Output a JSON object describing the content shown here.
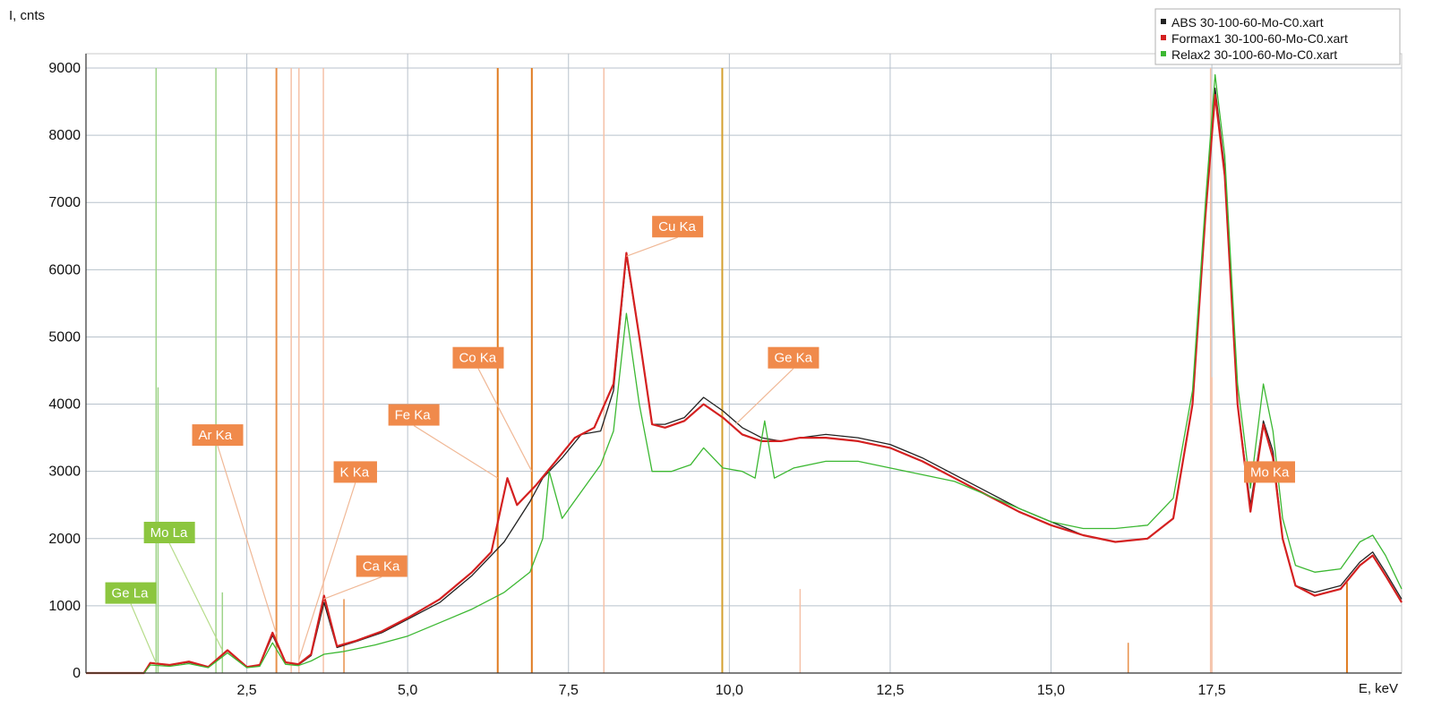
{
  "chart_data": {
    "type": "line",
    "title": "",
    "xlabel": "E, keV",
    "ylabel": "I, cnts",
    "xlim": [
      0,
      20.45
    ],
    "ylim": [
      0,
      9000
    ],
    "x_ticks": [
      {
        "value": 2.5,
        "label": "2,5"
      },
      {
        "value": 5.0,
        "label": "5,0"
      },
      {
        "value": 7.5,
        "label": "7,5"
      },
      {
        "value": 10.0,
        "label": "10,0"
      },
      {
        "value": 12.5,
        "label": "12,5"
      },
      {
        "value": 15.0,
        "label": "15,0"
      },
      {
        "value": 17.5,
        "label": "17,5"
      }
    ],
    "y_ticks": [
      {
        "value": 0,
        "label": "0"
      },
      {
        "value": 1000,
        "label": "1000"
      },
      {
        "value": 2000,
        "label": "2000"
      },
      {
        "value": 3000,
        "label": "3000"
      },
      {
        "value": 4000,
        "label": "4000"
      },
      {
        "value": 5000,
        "label": "5000"
      },
      {
        "value": 6000,
        "label": "6000"
      },
      {
        "value": 7000,
        "label": "7000"
      },
      {
        "value": 8000,
        "label": "8000"
      },
      {
        "value": 9000,
        "label": "9000"
      }
    ],
    "grid": true,
    "legend_position": "top-right",
    "series": [
      {
        "name": "ABS 30-100-60-Mo-C0.xart",
        "color": "#222222",
        "points": [
          [
            0,
            0
          ],
          [
            0.5,
            0
          ],
          [
            0.9,
            0
          ],
          [
            1.0,
            150
          ],
          [
            1.3,
            120
          ],
          [
            1.6,
            160
          ],
          [
            1.9,
            90
          ],
          [
            2.2,
            330
          ],
          [
            2.5,
            90
          ],
          [
            2.7,
            120
          ],
          [
            2.9,
            560
          ],
          [
            3.1,
            160
          ],
          [
            3.3,
            120
          ],
          [
            3.5,
            260
          ],
          [
            3.7,
            1050
          ],
          [
            3.9,
            380
          ],
          [
            4.2,
            470
          ],
          [
            4.6,
            600
          ],
          [
            5.0,
            800
          ],
          [
            5.5,
            1050
          ],
          [
            6.0,
            1450
          ],
          [
            6.5,
            1950
          ],
          [
            6.9,
            2550
          ],
          [
            7.1,
            2900
          ],
          [
            7.4,
            3200
          ],
          [
            7.7,
            3550
          ],
          [
            8.0,
            3600
          ],
          [
            8.2,
            4200
          ],
          [
            8.4,
            6200
          ],
          [
            8.6,
            5000
          ],
          [
            8.8,
            3700
          ],
          [
            9.0,
            3700
          ],
          [
            9.3,
            3800
          ],
          [
            9.6,
            4100
          ],
          [
            9.9,
            3900
          ],
          [
            10.2,
            3650
          ],
          [
            10.5,
            3500
          ],
          [
            10.8,
            3450
          ],
          [
            11.1,
            3500
          ],
          [
            11.5,
            3550
          ],
          [
            12.0,
            3500
          ],
          [
            12.5,
            3400
          ],
          [
            13.0,
            3200
          ],
          [
            13.5,
            2950
          ],
          [
            14.0,
            2700
          ],
          [
            14.5,
            2450
          ],
          [
            15.0,
            2250
          ],
          [
            15.5,
            2050
          ],
          [
            16.0,
            1950
          ],
          [
            16.5,
            2000
          ],
          [
            16.9,
            2300
          ],
          [
            17.2,
            4000
          ],
          [
            17.4,
            6800
          ],
          [
            17.55,
            8700
          ],
          [
            17.7,
            7500
          ],
          [
            17.9,
            4000
          ],
          [
            18.1,
            2500
          ],
          [
            18.3,
            3750
          ],
          [
            18.45,
            3300
          ],
          [
            18.6,
            2000
          ],
          [
            18.8,
            1300
          ],
          [
            19.1,
            1200
          ],
          [
            19.5,
            1300
          ],
          [
            19.8,
            1650
          ],
          [
            20.0,
            1800
          ],
          [
            20.2,
            1500
          ],
          [
            20.45,
            1100
          ]
        ]
      },
      {
        "name": "Formax1 30-100-60-Mo-C0.xart",
        "color": "#d42020",
        "points": [
          [
            0,
            0
          ],
          [
            0.5,
            0
          ],
          [
            0.9,
            0
          ],
          [
            1.0,
            150
          ],
          [
            1.3,
            120
          ],
          [
            1.6,
            170
          ],
          [
            1.9,
            90
          ],
          [
            2.2,
            340
          ],
          [
            2.5,
            90
          ],
          [
            2.7,
            120
          ],
          [
            2.9,
            600
          ],
          [
            3.1,
            160
          ],
          [
            3.3,
            130
          ],
          [
            3.5,
            280
          ],
          [
            3.7,
            1150
          ],
          [
            3.9,
            400
          ],
          [
            4.2,
            480
          ],
          [
            4.6,
            620
          ],
          [
            5.0,
            820
          ],
          [
            5.5,
            1100
          ],
          [
            6.0,
            1500
          ],
          [
            6.3,
            1800
          ],
          [
            6.55,
            2900
          ],
          [
            6.7,
            2500
          ],
          [
            7.0,
            2800
          ],
          [
            7.3,
            3150
          ],
          [
            7.6,
            3500
          ],
          [
            7.9,
            3650
          ],
          [
            8.2,
            4300
          ],
          [
            8.4,
            6250
          ],
          [
            8.6,
            5000
          ],
          [
            8.8,
            3700
          ],
          [
            9.0,
            3650
          ],
          [
            9.3,
            3750
          ],
          [
            9.6,
            4000
          ],
          [
            9.9,
            3800
          ],
          [
            10.2,
            3550
          ],
          [
            10.5,
            3450
          ],
          [
            10.8,
            3450
          ],
          [
            11.1,
            3500
          ],
          [
            11.5,
            3500
          ],
          [
            12.0,
            3450
          ],
          [
            12.5,
            3350
          ],
          [
            13.0,
            3150
          ],
          [
            13.5,
            2900
          ],
          [
            14.0,
            2650
          ],
          [
            14.5,
            2400
          ],
          [
            15.0,
            2200
          ],
          [
            15.5,
            2050
          ],
          [
            16.0,
            1950
          ],
          [
            16.5,
            2000
          ],
          [
            16.9,
            2300
          ],
          [
            17.2,
            4000
          ],
          [
            17.4,
            6800
          ],
          [
            17.55,
            8600
          ],
          [
            17.7,
            7400
          ],
          [
            17.9,
            4000
          ],
          [
            18.1,
            2400
          ],
          [
            18.3,
            3700
          ],
          [
            18.45,
            3200
          ],
          [
            18.6,
            2000
          ],
          [
            18.8,
            1300
          ],
          [
            19.1,
            1150
          ],
          [
            19.5,
            1250
          ],
          [
            19.8,
            1600
          ],
          [
            20.0,
            1750
          ],
          [
            20.2,
            1450
          ],
          [
            20.45,
            1050
          ]
        ]
      },
      {
        "name": "Relax2 30-100-60-Mo-C0.xart",
        "color": "#3cb832",
        "points": [
          [
            0,
            0
          ],
          [
            0.5,
            0
          ],
          [
            0.9,
            0
          ],
          [
            1.0,
            120
          ],
          [
            1.3,
            100
          ],
          [
            1.6,
            140
          ],
          [
            1.9,
            80
          ],
          [
            2.2,
            300
          ],
          [
            2.5,
            80
          ],
          [
            2.7,
            100
          ],
          [
            2.9,
            450
          ],
          [
            3.1,
            130
          ],
          [
            3.3,
            110
          ],
          [
            3.5,
            180
          ],
          [
            3.7,
            280
          ],
          [
            4.0,
            320
          ],
          [
            4.5,
            420
          ],
          [
            5.0,
            550
          ],
          [
            5.5,
            750
          ],
          [
            6.0,
            950
          ],
          [
            6.5,
            1200
          ],
          [
            6.9,
            1500
          ],
          [
            7.1,
            2000
          ],
          [
            7.2,
            3000
          ],
          [
            7.4,
            2300
          ],
          [
            7.7,
            2700
          ],
          [
            8.0,
            3100
          ],
          [
            8.2,
            3600
          ],
          [
            8.4,
            5350
          ],
          [
            8.6,
            4000
          ],
          [
            8.8,
            3000
          ],
          [
            9.1,
            3000
          ],
          [
            9.4,
            3100
          ],
          [
            9.6,
            3350
          ],
          [
            9.9,
            3050
          ],
          [
            10.2,
            3000
          ],
          [
            10.4,
            2900
          ],
          [
            10.55,
            3750
          ],
          [
            10.7,
            2900
          ],
          [
            11.0,
            3050
          ],
          [
            11.5,
            3150
          ],
          [
            12.0,
            3150
          ],
          [
            12.5,
            3050
          ],
          [
            13.0,
            2950
          ],
          [
            13.5,
            2850
          ],
          [
            14.0,
            2650
          ],
          [
            14.5,
            2450
          ],
          [
            15.0,
            2250
          ],
          [
            15.5,
            2150
          ],
          [
            16.0,
            2150
          ],
          [
            16.5,
            2200
          ],
          [
            16.9,
            2600
          ],
          [
            17.2,
            4200
          ],
          [
            17.4,
            7000
          ],
          [
            17.55,
            8900
          ],
          [
            17.7,
            7700
          ],
          [
            17.9,
            4300
          ],
          [
            18.1,
            2750
          ],
          [
            18.3,
            4300
          ],
          [
            18.45,
            3600
          ],
          [
            18.6,
            2300
          ],
          [
            18.8,
            1600
          ],
          [
            19.1,
            1500
          ],
          [
            19.5,
            1550
          ],
          [
            19.8,
            1950
          ],
          [
            20.0,
            2050
          ],
          [
            20.2,
            1750
          ],
          [
            20.45,
            1250
          ]
        ]
      }
    ],
    "element_lines": [
      {
        "x": 1.09,
        "height": 9000,
        "color": "#9fd48a",
        "width": 1.5
      },
      {
        "x": 1.12,
        "height": 4250,
        "color": "#9fd48a",
        "width": 1.5
      },
      {
        "x": 2.02,
        "height": 9000,
        "color": "#9fd48a",
        "width": 1.5
      },
      {
        "x": 2.12,
        "height": 1200,
        "color": "#9fd48a",
        "width": 1.5
      },
      {
        "x": 2.96,
        "height": 9000,
        "color": "#e8904a",
        "width": 2
      },
      {
        "x": 3.19,
        "height": 9000,
        "color": "#f5c2a8",
        "width": 1.5
      },
      {
        "x": 3.31,
        "height": 9000,
        "color": "#f5c2a8",
        "width": 1.5
      },
      {
        "x": 3.69,
        "height": 9000,
        "color": "#f5c2a8",
        "width": 1.5
      },
      {
        "x": 4.01,
        "height": 1100,
        "color": "#e8904a",
        "width": 1.5
      },
      {
        "x": 6.4,
        "height": 9000,
        "color": "#e07b20",
        "width": 2
      },
      {
        "x": 6.93,
        "height": 9000,
        "color": "#e07b20",
        "width": 2
      },
      {
        "x": 8.05,
        "height": 9000,
        "color": "#f5c2a8",
        "width": 1.5
      },
      {
        "x": 9.89,
        "height": 9000,
        "color": "#d4a030",
        "width": 2
      },
      {
        "x": 11.1,
        "height": 1250,
        "color": "#f5c2a8",
        "width": 1.5
      },
      {
        "x": 16.2,
        "height": 450,
        "color": "#e8904a",
        "width": 1.5
      },
      {
        "x": 17.48,
        "height": 9000,
        "color": "#f5c2a8",
        "width": 1.5
      },
      {
        "x": 17.5,
        "height": 4400,
        "color": "#f5c2a8",
        "width": 1.5
      },
      {
        "x": 19.6,
        "height": 1350,
        "color": "#e07b20",
        "width": 2
      }
    ],
    "element_labels": [
      {
        "text": "Cu Ka",
        "style": "orange",
        "box": [
          8.8,
          6800
        ],
        "anchor": [
          8.4,
          6200
        ]
      },
      {
        "text": "Co Ka",
        "style": "orange",
        "box": [
          5.7,
          4850
        ],
        "anchor": [
          6.93,
          3000
        ]
      },
      {
        "text": "Ge Ka",
        "style": "orange",
        "box": [
          10.6,
          4850
        ],
        "anchor": [
          10.1,
          3700
        ]
      },
      {
        "text": "Fe Ka",
        "style": "orange",
        "box": [
          4.7,
          4000
        ],
        "anchor": [
          6.4,
          2900
        ]
      },
      {
        "text": "Ar Ka",
        "style": "orange",
        "box": [
          1.65,
          3700
        ],
        "anchor": [
          2.96,
          580
        ]
      },
      {
        "text": "K Ka",
        "style": "orange",
        "box": [
          3.85,
          3150
        ],
        "anchor": [
          3.31,
          200
        ]
      },
      {
        "text": "Ca Ka",
        "style": "orange",
        "box": [
          4.2,
          1750
        ],
        "anchor": [
          3.69,
          1100
        ]
      },
      {
        "text": "Mo La",
        "style": "green",
        "box": [
          0.9,
          2250
        ],
        "anchor": [
          2.12,
          340
        ]
      },
      {
        "text": "Ge La",
        "style": "green",
        "box": [
          0.3,
          1350
        ],
        "anchor": [
          1.09,
          150
        ]
      },
      {
        "text": "Mo Ka",
        "style": "orange",
        "box": [
          18.0,
          3150
        ],
        "anchor": null
      }
    ]
  }
}
